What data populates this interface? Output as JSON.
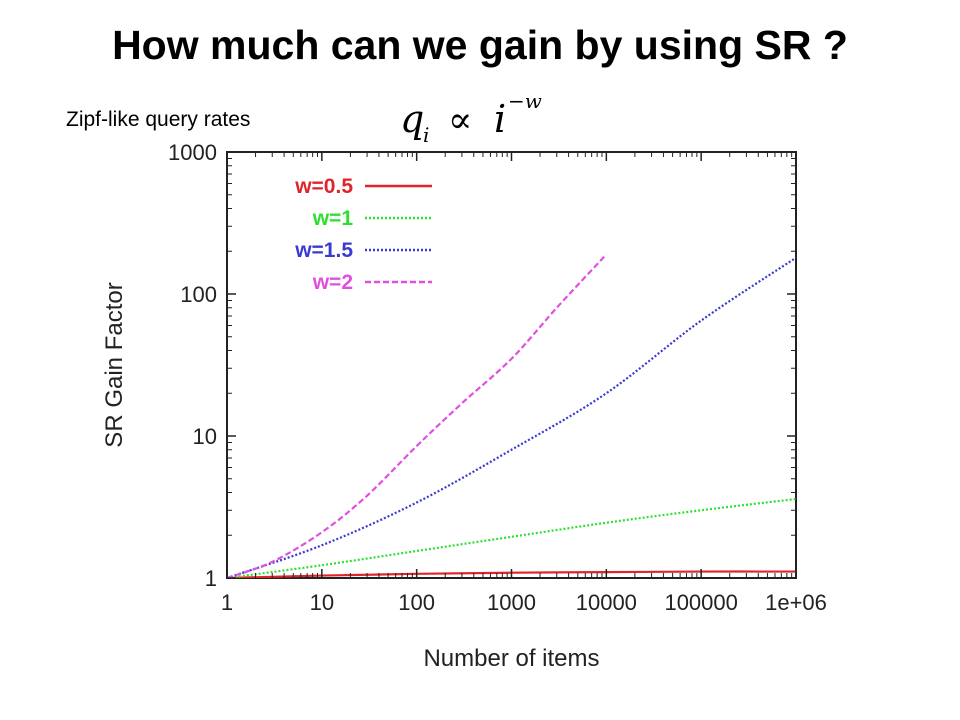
{
  "slide": {
    "title": "How much can we gain by using SR ?",
    "subtitle": "Zipf-like query rates",
    "formula": {
      "q": "q",
      "sub_i": "i",
      "prop": "∝",
      "i": "i",
      "exp": "−w"
    }
  },
  "chart_data": {
    "type": "line",
    "xlabel": "Number of items",
    "ylabel": "SR Gain Factor",
    "xscale": "log",
    "yscale": "log",
    "xlim": [
      1,
      1000000
    ],
    "ylim": [
      1,
      1000
    ],
    "xticks": [
      "1",
      "10",
      "100",
      "1000",
      "10000",
      "100000",
      "1e+06"
    ],
    "yticks": [
      "1",
      "10",
      "100",
      "1000"
    ],
    "legend_position": "top-left",
    "grid": false,
    "series": [
      {
        "name": "w=0.5",
        "color": "#e0242c",
        "style": "solid",
        "x": [
          1,
          10,
          100,
          1000,
          10000,
          100000,
          1000000
        ],
        "y": [
          1.0,
          1.04,
          1.07,
          1.09,
          1.1,
          1.11,
          1.11
        ]
      },
      {
        "name": "w=1",
        "color": "#2ee02e",
        "style": "dotted",
        "x": [
          1,
          10,
          100,
          1000,
          10000,
          100000,
          1000000
        ],
        "y": [
          1.0,
          1.23,
          1.55,
          1.95,
          2.45,
          3.0,
          3.6
        ]
      },
      {
        "name": "w=1.5",
        "color": "#3a3ad0",
        "style": "dotted",
        "x": [
          1,
          10,
          100,
          1000,
          10000,
          100000,
          1000000
        ],
        "y": [
          1.0,
          1.7,
          3.4,
          8.0,
          20,
          65,
          180
        ]
      },
      {
        "name": "w=2",
        "color": "#e050e0",
        "style": "dashed",
        "x": [
          1,
          3,
          10,
          30,
          100,
          300,
          1000,
          3000,
          10000
        ],
        "y": [
          1.0,
          1.3,
          2.1,
          3.8,
          8.5,
          17,
          35,
          80,
          190
        ]
      }
    ]
  }
}
